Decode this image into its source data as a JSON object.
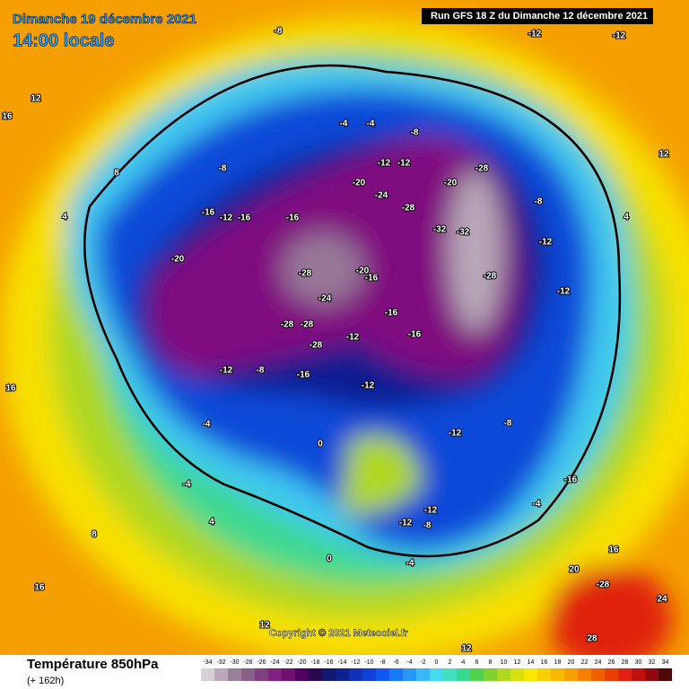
{
  "header": {
    "date": "Dimanche 19 décembre 2021",
    "time": "14:00 locale",
    "run": "Run GFS 18 Z du Dimanche 12 décembre 2021"
  },
  "footer": {
    "title": "Température 850hPa",
    "lead": "(+ 162h)",
    "copyright": "Copyright © 2021 Meteociel.fr"
  },
  "legend": {
    "ticks": [
      -34,
      -32,
      -30,
      -28,
      -26,
      -24,
      -22,
      -20,
      -18,
      -16,
      -14,
      -12,
      -10,
      -8,
      -6,
      -4,
      -2,
      0,
      2,
      4,
      6,
      8,
      10,
      12,
      14,
      16,
      18,
      20,
      22,
      24,
      26,
      28,
      30,
      32,
      34
    ],
    "colors": [
      "#d8d0d8",
      "#b8a8b8",
      "#988098",
      "#886088",
      "#804080",
      "#802080",
      "#701070",
      "#500060",
      "#280850",
      "#101870",
      "#102090",
      "#1030b8",
      "#1040d8",
      "#1058f0",
      "#1878f8",
      "#2898f8",
      "#38b8f8",
      "#48d8f0",
      "#40e0c0",
      "#38d890",
      "#50d050",
      "#80d030",
      "#b0d820",
      "#d8e010",
      "#f8e800",
      "#f8d000",
      "#f8b800",
      "#f8a000",
      "#f88000",
      "#f06000",
      "#e84000",
      "#e02010",
      "#c01010",
      "#900810",
      "#500808"
    ]
  },
  "map_labels": [
    -8,
    -12,
    -12,
    -8,
    -4,
    -4,
    -8,
    -12,
    -12,
    -20,
    -20,
    -28,
    -24,
    -28,
    -32,
    -32,
    -28,
    -28,
    -24,
    -20,
    -16,
    -16,
    -16,
    -12,
    -16,
    -20,
    -28,
    -28,
    -28,
    -16,
    -16,
    -12,
    -12,
    -8,
    -16,
    -12,
    -12,
    -8,
    -4,
    -4,
    0,
    4,
    -12,
    -12,
    -8,
    -4,
    0,
    8,
    16,
    16,
    12,
    16,
    20,
    -28,
    28,
    24,
    -16,
    -12,
    -8,
    4,
    -12,
    12,
    8,
    4,
    12,
    16,
    -4,
    12
  ]
}
